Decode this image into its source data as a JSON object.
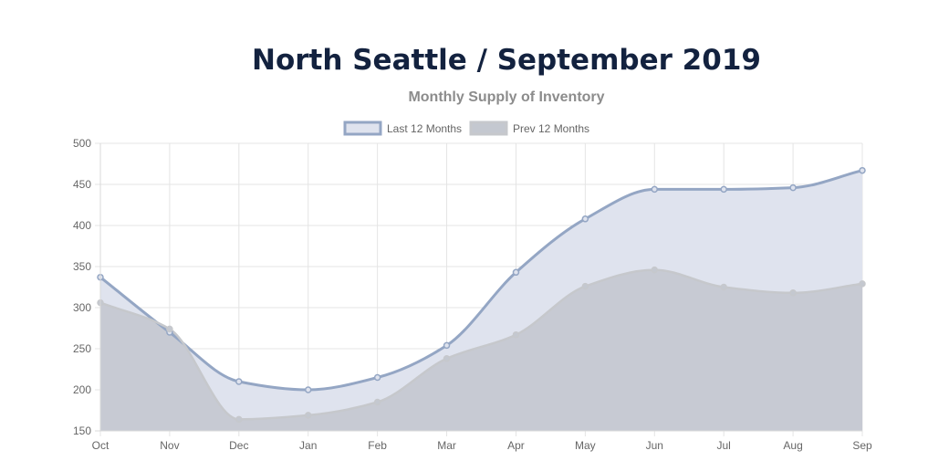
{
  "chart_data": {
    "type": "area",
    "title": "North Seattle / September 2019",
    "subtitle": "Monthly Supply of Inventory",
    "xlabel": "",
    "ylabel": "",
    "categories": [
      "Oct",
      "Nov",
      "Dec",
      "Jan",
      "Feb",
      "Mar",
      "Apr",
      "May",
      "Jun",
      "Jul",
      "Aug",
      "Sep"
    ],
    "ylim": [
      150,
      500
    ],
    "yticks": [
      150,
      200,
      250,
      300,
      350,
      400,
      450,
      500
    ],
    "grid": true,
    "legend_position": "top-center",
    "series": [
      {
        "name": "Last 12 Months",
        "values": [
          337,
          270,
          210,
          200,
          215,
          254,
          343,
          408,
          444,
          444,
          446,
          467
        ],
        "stroke": "#94a6c4",
        "fill": "#dfe3ee"
      },
      {
        "name": "Prev 12 Months",
        "values": [
          306,
          274,
          164,
          169,
          185,
          238,
          267,
          326,
          346,
          325,
          318,
          329
        ],
        "stroke": "#c6c8cc",
        "fill": "#c4c8d0"
      }
    ]
  }
}
